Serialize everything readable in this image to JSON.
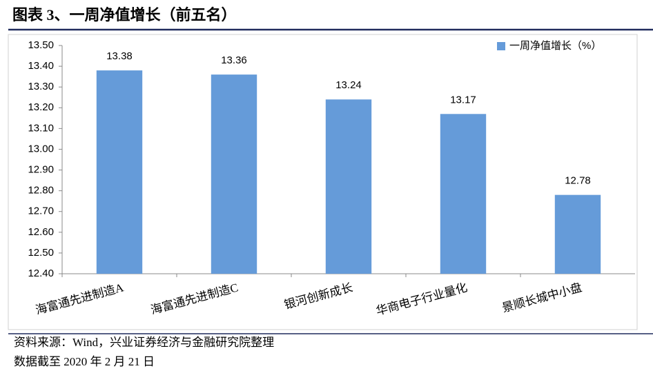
{
  "title": "图表 3、一周净值增长（前五名）",
  "chart_data": {
    "type": "bar",
    "categories": [
      "海富通先进制造A",
      "海富通先进制造C",
      "银河创新成长",
      "华商电子行业量化",
      "景顺长城中小盘"
    ],
    "series": [
      {
        "name": "一周净值增长（%）",
        "color": "#659bd9",
        "values": [
          13.38,
          13.36,
          13.24,
          13.17,
          12.78
        ]
      }
    ],
    "ylim": [
      12.4,
      13.5
    ],
    "yticks": [
      {
        "value": 12.4,
        "label": "12.40"
      },
      {
        "value": 12.5,
        "label": "12.50"
      },
      {
        "value": 12.6,
        "label": "12.60"
      },
      {
        "value": 12.7,
        "label": "12.70"
      },
      {
        "value": 12.8,
        "label": "12.80"
      },
      {
        "value": 12.9,
        "label": "12.90"
      },
      {
        "value": 13.0,
        "label": "13.00"
      },
      {
        "value": 13.1,
        "label": "13.10"
      },
      {
        "value": 13.2,
        "label": "13.20"
      },
      {
        "value": 13.3,
        "label": "13.30"
      },
      {
        "value": 13.4,
        "label": "13.40"
      },
      {
        "value": 13.5,
        "label": "13.50"
      }
    ],
    "legend": "upper right",
    "grid": false
  },
  "source": "资料来源：Wind，兴业证券经济与金融研究院整理",
  "note": "数据截至 2020 年 2 月 21 日"
}
